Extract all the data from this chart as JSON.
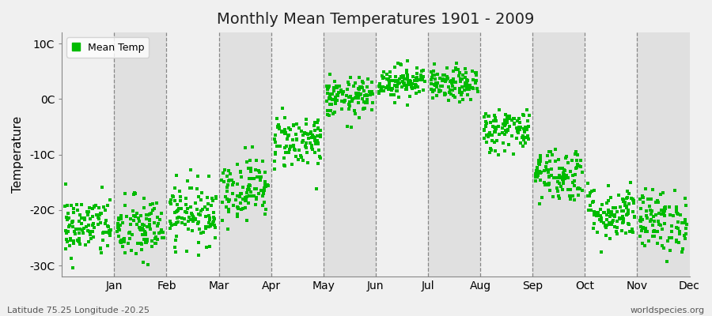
{
  "title": "Monthly Mean Temperatures 1901 - 2009",
  "ylabel": "Temperature",
  "footer_left": "Latitude 75.25 Longitude -20.25",
  "footer_right": "worldspecies.org",
  "legend_label": "Mean Temp",
  "dot_color": "#00BB00",
  "bg_color_light": "#F0F0F0",
  "bg_color_dark": "#E0E0E0",
  "ylim": [
    -32,
    12
  ],
  "yticks": [
    -30,
    -20,
    -10,
    0,
    10
  ],
  "ytick_labels": [
    "-30C",
    "-20C",
    "-10C",
    "0C",
    "10C"
  ],
  "months": [
    "Jan",
    "Feb",
    "Mar",
    "Apr",
    "May",
    "Jun",
    "Jul",
    "Aug",
    "Sep",
    "Oct",
    "Nov",
    "Dec"
  ],
  "mean_temps": [
    -23.0,
    -23.5,
    -20.5,
    -16.0,
    -7.5,
    0.2,
    3.2,
    2.5,
    -5.5,
    -13.5,
    -20.5,
    -22.0
  ],
  "std_temps": [
    2.8,
    3.0,
    2.8,
    2.8,
    2.5,
    1.8,
    1.5,
    1.5,
    2.0,
    2.5,
    2.5,
    2.8
  ],
  "n_years": 109,
  "seed": 42,
  "figsize": [
    9.0,
    4.0
  ],
  "dpi": 100
}
